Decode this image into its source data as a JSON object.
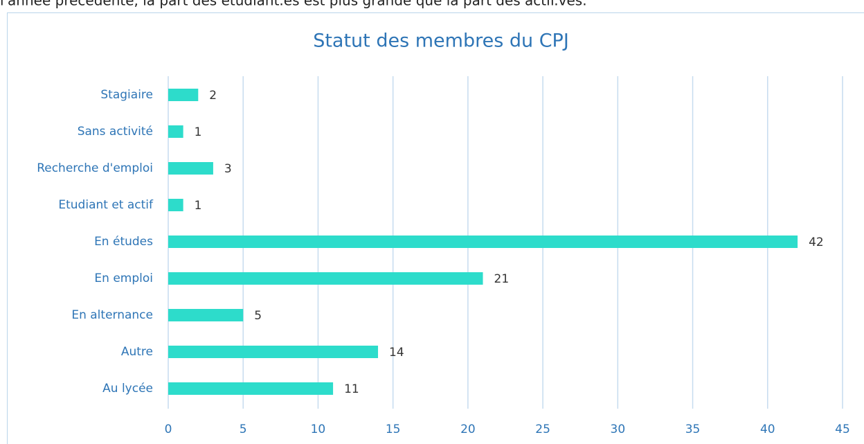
{
  "text": "l'année précédente, la part des étudiant.es est plus grande que la part des actif.ves.",
  "chart_data": {
    "type": "bar",
    "orientation": "horizontal",
    "title": "Statut des membres du CPJ",
    "categories": [
      "Stagiaire",
      "Sans activité",
      "Recherche d'emploi",
      "Etudiant et actif",
      "En études",
      "En emploi",
      "En alternance",
      "Autre",
      "Au lycée"
    ],
    "values": [
      2,
      1,
      3,
      1,
      42,
      21,
      5,
      14,
      11
    ],
    "color": "#2ddccb",
    "xlim": [
      0,
      45
    ],
    "xticks": [
      0,
      5,
      10,
      15,
      20,
      25,
      30,
      35,
      40,
      45
    ],
    "grid": true
  }
}
